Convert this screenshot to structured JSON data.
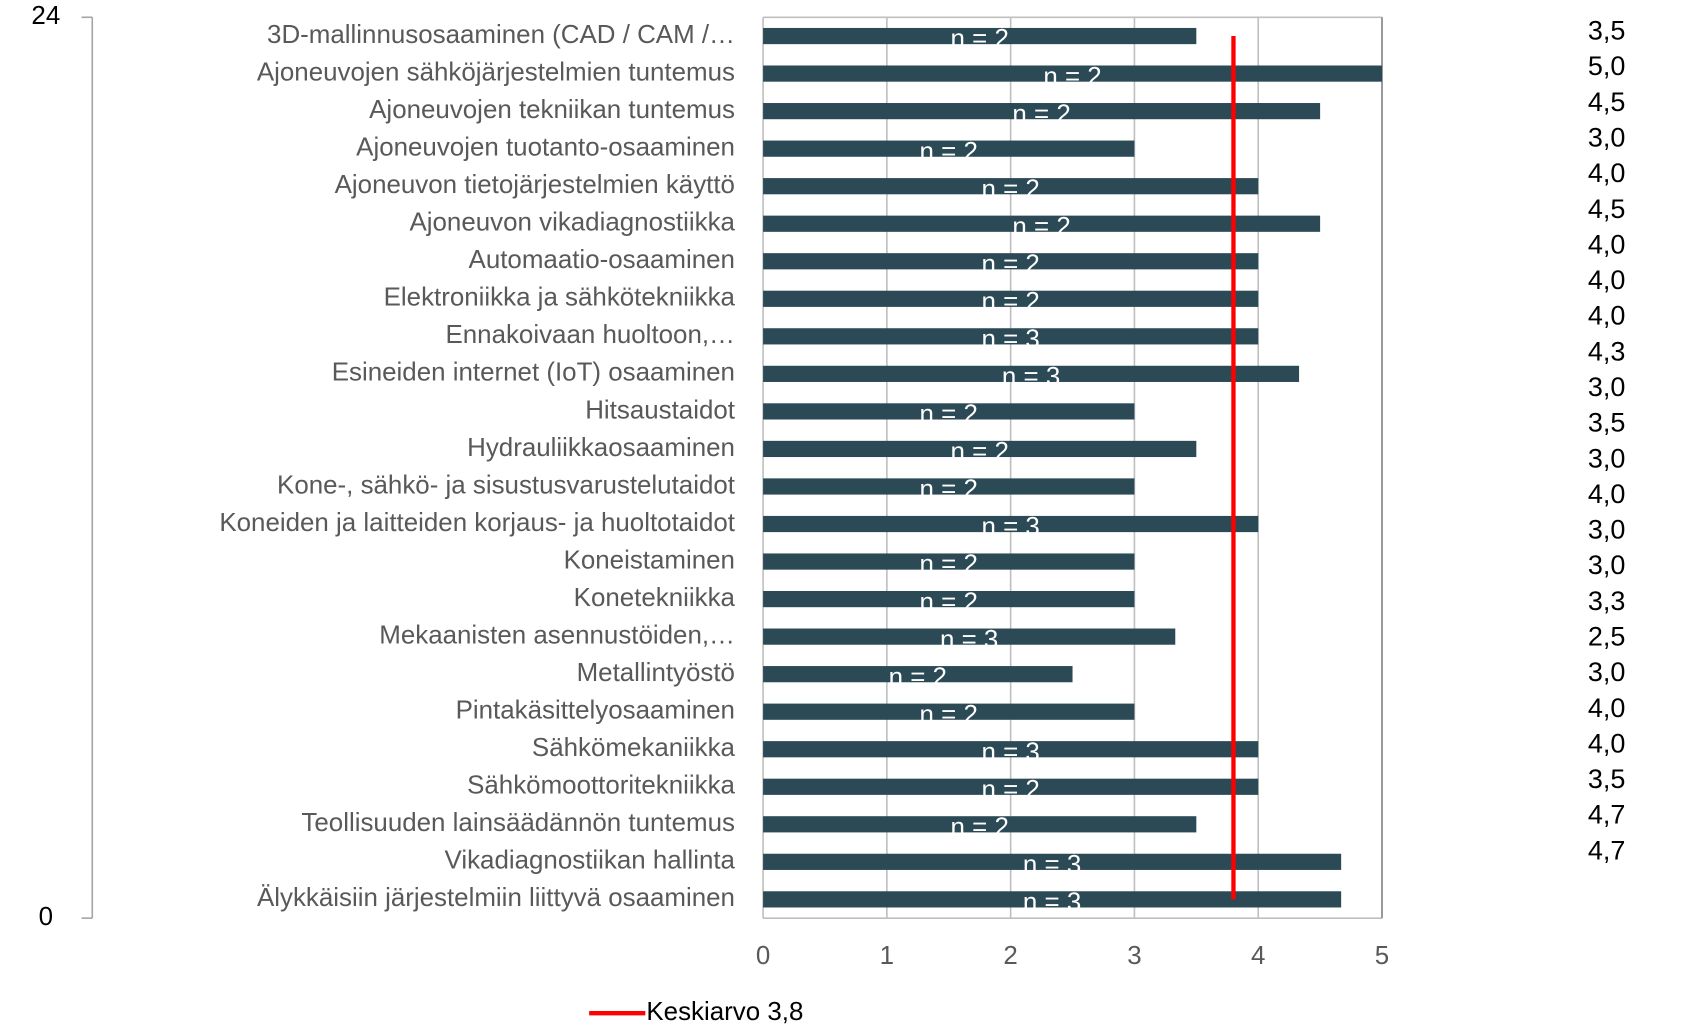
{
  "chart_data": {
    "type": "bar",
    "orientation": "horizontal",
    "categories": [
      "3D-mallinnusosaaminen (CAD / CAM /…",
      "Ajoneuvojen sähköjärjestelmien tuntemus",
      "Ajoneuvojen tekniikan tuntemus",
      "Ajoneuvojen tuotanto-osaaminen",
      "Ajoneuvon tietojärjestelmien käyttö",
      "Ajoneuvon vikadiagnostiikka",
      "Automaatio-osaaminen",
      "Elektroniikka ja sähkötekniikka",
      "Ennakoivaan huoltoon,…",
      "Esineiden internet (IoT) osaaminen",
      "Hitsaustaidot",
      "Hydrauliikkaosaaminen",
      "Kone-, sähkö- ja sisustusvarustelutaidot",
      "Koneiden ja laitteiden korjaus- ja huoltotaidot",
      "Koneistaminen",
      "Konetekniikka",
      "Mekaanisten asennustöiden,…",
      "Metallintyöstö",
      "Pintakäsittelyosaaminen",
      "Sähkömekaniikka",
      "Sähkömoottoritekniikka",
      "Teollisuuden lainsäädännön tuntemus",
      "Vikadiagnostiikan hallinta",
      "Älykkäisiin järjestelmiin liittyvä osaaminen"
    ],
    "values": [
      3.5,
      5,
      4.5,
      3,
      4,
      4.5,
      4,
      4,
      4,
      4.33,
      3,
      3.5,
      3,
      4,
      3,
      3,
      3.33,
      2.5,
      3,
      4,
      4,
      3.5,
      4.67,
      4.67
    ],
    "value_labels": [
      "3,5",
      "5,0",
      "4,5",
      "3,0",
      "4,0",
      "4,5",
      "4,0",
      "4,0",
      "4,0",
      "4,3",
      "3,0",
      "3,5",
      "3,0",
      "4,0",
      "3,0",
      "3,0",
      "3,3",
      "2,5",
      "3,0",
      "4,0",
      "4,0",
      "3,5",
      "4,7",
      "4,7"
    ],
    "n_labels": [
      "n = 2",
      "n = 2",
      "n = 2",
      "n = 2",
      "n = 2",
      "n = 2",
      "n = 2",
      "n = 2",
      "n = 3",
      "n = 3",
      "n = 2",
      "n = 2",
      "n = 2",
      "n = 3",
      "n = 2",
      "n = 2",
      "n = 3",
      "n = 2",
      "n = 2",
      "n = 3",
      "n = 2",
      "n = 2",
      "n = 3",
      "n = 3"
    ],
    "color": "#2b4a56",
    "xlim": [
      0,
      5
    ],
    "xticks": [
      0,
      1,
      2,
      3,
      4,
      5
    ],
    "ylim": [
      0,
      24
    ],
    "yticks": [
      0,
      24
    ],
    "grid": true,
    "average": {
      "name": "Keskiarvo 3,8",
      "color": "#ff0000",
      "x": [
        3.8,
        3.8
      ],
      "y": [
        0.5,
        23.5
      ]
    }
  }
}
